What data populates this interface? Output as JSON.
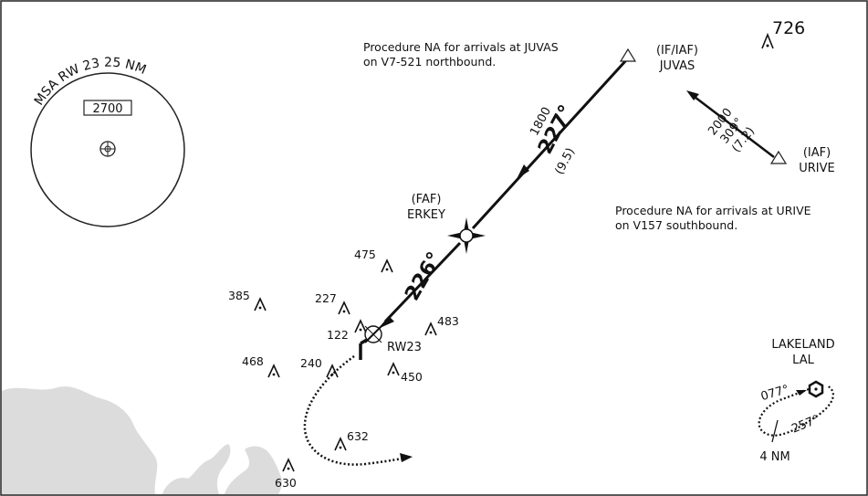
{
  "msa": {
    "label": "MSA RW 23 25 NM",
    "altitude": "2700"
  },
  "notes": [
    "Procedure NA for arrivals at JUVAS",
    "on V7-521 northbound.",
    "Procedure NA for arrivals at URIVE",
    "on V157 southbound."
  ],
  "fixes": {
    "juvas": {
      "role": "(IF/IAF)",
      "name": "JUVAS"
    },
    "urive": {
      "role": "(IAF)",
      "name": "URIVE"
    },
    "erkey": {
      "role": "(FAF)",
      "name": "ERKEY"
    },
    "runway": "RW23",
    "lakeland": {
      "name": "LAKELAND",
      "ident": "LAL"
    }
  },
  "legs": {
    "juvas_erkey": {
      "altitude": "1800",
      "course": "227°",
      "distance": "(9.5)"
    },
    "erkey_rw": {
      "course": "226°"
    },
    "urive_juvas": {
      "altitude": "2000",
      "course": "309°",
      "distance": "(7.2)"
    }
  },
  "holding": {
    "inbound": "077°",
    "outbound": "257°",
    "leg": "4 NM"
  },
  "obstacles": [
    "726",
    "475",
    "385",
    "227",
    "122",
    "483",
    "468",
    "240",
    "450",
    "632",
    "630"
  ]
}
